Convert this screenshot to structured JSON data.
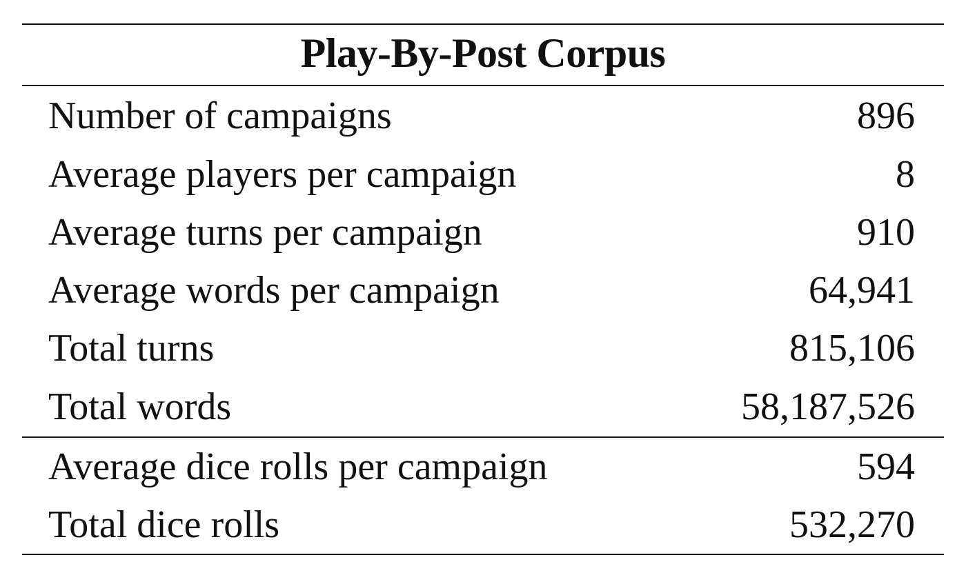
{
  "table": {
    "title": "Play-By-Post Corpus",
    "rows_main": [
      {
        "label": "Number of campaigns",
        "value": "896"
      },
      {
        "label": "Average players per campaign",
        "value": "8"
      },
      {
        "label": "Average turns per campaign",
        "value": "910"
      },
      {
        "label": "Average words per campaign",
        "value": "64,941"
      },
      {
        "label": "Total turns",
        "value": "815,106"
      },
      {
        "label": "Total words",
        "value": "58,187,526"
      }
    ],
    "rows_dice": [
      {
        "label": "Average dice rolls per campaign",
        "value": "594"
      },
      {
        "label": "Total dice rolls",
        "value": "532,270"
      }
    ]
  }
}
